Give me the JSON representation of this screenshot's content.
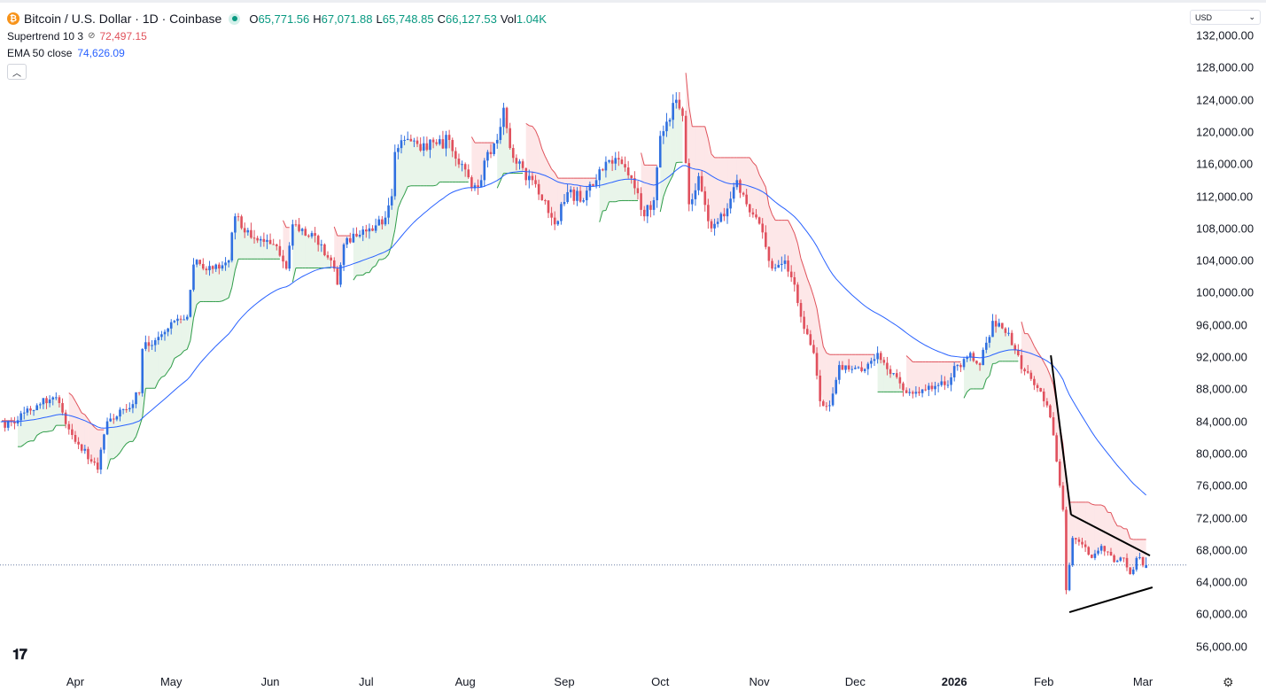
{
  "header": {
    "symbol_title": "Bitcoin / U.S. Dollar · 1D · Coinbase",
    "coin_glyph": "₿",
    "ohlc": [
      {
        "key": "O",
        "value": "65,771.56"
      },
      {
        "key": "H",
        "value": "67,071.88"
      },
      {
        "key": "L",
        "value": "65,748.85"
      },
      {
        "key": "C",
        "value": "66,127.53"
      },
      {
        "key": "Vol",
        "value": "1.04K"
      }
    ],
    "indicators": [
      {
        "name": "Supertrend 10 3",
        "value": "72,497.15",
        "color": "#e0525b"
      },
      {
        "name": "EMA 50 close",
        "value": "74,626.09",
        "color": "#2962ff"
      }
    ],
    "collapse_icon": "chevron-up-icon"
  },
  "currency_select": {
    "value": "USD"
  },
  "colors": {
    "up": "#2f6fe0",
    "down": "#e0505d",
    "ema": "#2962ff",
    "st_up": "#2e9c48",
    "st_down": "#e0525b",
    "st_up_fill": "rgba(76,175,80,0.12)",
    "st_down_fill": "rgba(242,54,69,0.12)",
    "trendline": "#000000",
    "last_price_line": "#6b7ea6"
  },
  "chart_data": {
    "type": "candlestick",
    "title": "Bitcoin / U.S. Dollar · 1D · Coinbase",
    "x_unit": "days since 2025-03-09",
    "ylim": [
      52000,
      134000
    ],
    "y_ticks": [
      56000,
      60000,
      64000,
      68000,
      72000,
      76000,
      80000,
      84000,
      88000,
      92000,
      96000,
      100000,
      104000,
      108000,
      112000,
      116000,
      120000,
      124000,
      128000,
      132000
    ],
    "y_tick_labels": [
      "56,000.00",
      "60,000.00",
      "64,000.00",
      "68,000.00",
      "72,000.00",
      "76,000.00",
      "80,000.00",
      "84,000.00",
      "88,000.00",
      "92,000.00",
      "96,000.00",
      "100,000.00",
      "104,000.00",
      "108,000.00",
      "112,000.00",
      "116,000.00",
      "120,000.00",
      "124,000.00",
      "128,000.00",
      "132,000.00"
    ],
    "x_ticks": [
      {
        "label": "Apr",
        "day": 23
      },
      {
        "label": "May",
        "day": 53
      },
      {
        "label": "Jun",
        "day": 84
      },
      {
        "label": "Jul",
        "day": 114
      },
      {
        "label": "Aug",
        "day": 145
      },
      {
        "label": "Sep",
        "day": 176
      },
      {
        "label": "Oct",
        "day": 206
      },
      {
        "label": "Nov",
        "day": 237
      },
      {
        "label": "Dec",
        "day": 267
      },
      {
        "label": "2026",
        "day": 298,
        "bold": true
      },
      {
        "label": "Feb",
        "day": 326
      },
      {
        "label": "Mar",
        "day": 357
      }
    ],
    "last_price": 66127.53,
    "close_anchors": [
      [
        0,
        84000
      ],
      [
        1,
        83200
      ],
      [
        6,
        85000
      ],
      [
        11,
        86000
      ],
      [
        17,
        87000
      ],
      [
        21,
        83000
      ],
      [
        28,
        79000
      ],
      [
        30,
        78000
      ],
      [
        33,
        84000
      ],
      [
        39,
        85500
      ],
      [
        43,
        87500
      ],
      [
        44,
        93000
      ],
      [
        49,
        94500
      ],
      [
        54,
        96500
      ],
      [
        58,
        97000
      ],
      [
        60,
        103500
      ],
      [
        67,
        103500
      ],
      [
        71,
        104000
      ],
      [
        73,
        109500
      ],
      [
        76,
        107500
      ],
      [
        80,
        106500
      ],
      [
        85,
        106000
      ],
      [
        89,
        103000
      ],
      [
        91,
        108500
      ],
      [
        96,
        107000
      ],
      [
        100,
        106000
      ],
      [
        104,
        103000
      ],
      [
        105,
        101000
      ],
      [
        107,
        106000
      ],
      [
        111,
        107000
      ],
      [
        115,
        108000
      ],
      [
        119,
        108500
      ],
      [
        122,
        112000
      ],
      [
        123,
        117500
      ],
      [
        126,
        119000
      ],
      [
        130,
        118500
      ],
      [
        136,
        118500
      ],
      [
        140,
        119000
      ],
      [
        144,
        116000
      ],
      [
        147,
        113000
      ],
      [
        150,
        114000
      ],
      [
        152,
        117500
      ],
      [
        155,
        119000
      ],
      [
        157,
        123000
      ],
      [
        159,
        118000
      ],
      [
        164,
        114000
      ],
      [
        166,
        114000
      ],
      [
        169,
        111500
      ],
      [
        173,
        108500
      ],
      [
        177,
        112500
      ],
      [
        182,
        111500
      ],
      [
        186,
        114000
      ],
      [
        190,
        116500
      ],
      [
        194,
        116000
      ],
      [
        198,
        113000
      ],
      [
        201,
        109500
      ],
      [
        204,
        111500
      ],
      [
        206,
        119500
      ],
      [
        211,
        124000
      ],
      [
        213,
        122000
      ],
      [
        215,
        111000
      ],
      [
        218,
        114500
      ],
      [
        222,
        108000
      ],
      [
        226,
        109500
      ],
      [
        230,
        114000
      ],
      [
        234,
        110000
      ],
      [
        238,
        107500
      ],
      [
        241,
        103000
      ],
      [
        245,
        104000
      ],
      [
        248,
        101000
      ],
      [
        251,
        95500
      ],
      [
        254,
        92500
      ],
      [
        256,
        86500
      ],
      [
        259,
        86000
      ],
      [
        262,
        91000
      ],
      [
        266,
        90500
      ],
      [
        270,
        90500
      ],
      [
        274,
        92500
      ],
      [
        279,
        90000
      ],
      [
        283,
        87500
      ],
      [
        287,
        87500
      ],
      [
        291,
        88000
      ],
      [
        295,
        88500
      ],
      [
        299,
        91000
      ],
      [
        303,
        92500
      ],
      [
        306,
        91000
      ],
      [
        310,
        96500
      ],
      [
        315,
        95000
      ],
      [
        319,
        90500
      ],
      [
        323,
        88500
      ],
      [
        326,
        86500
      ],
      [
        328,
        84500
      ],
      [
        330,
        79000
      ],
      [
        332,
        73000
      ],
      [
        333,
        63000
      ],
      [
        335,
        69500
      ],
      [
        337,
        69000
      ],
      [
        341,
        67000
      ],
      [
        344,
        68500
      ],
      [
        348,
        66500
      ],
      [
        351,
        67000
      ],
      [
        353,
        65000
      ],
      [
        355,
        67000
      ],
      [
        358,
        66127.53
      ]
    ],
    "indicators": [
      {
        "name": "Supertrend",
        "period": 10,
        "multiplier": 3
      },
      {
        "name": "EMA",
        "period": 50,
        "source": "close"
      }
    ],
    "annotations": [
      {
        "type": "trendline",
        "from": [
          328.2,
          92200
        ],
        "to": [
          334.5,
          72400
        ]
      },
      {
        "type": "trendline",
        "from": [
          334.5,
          72400
        ],
        "to": [
          359.2,
          67300
        ]
      },
      {
        "type": "trendline",
        "from": [
          334.0,
          60260
        ],
        "to": [
          360.0,
          63350
        ]
      }
    ]
  },
  "footer": {
    "logo_text": "TV",
    "settings_icon": "gear-icon"
  }
}
